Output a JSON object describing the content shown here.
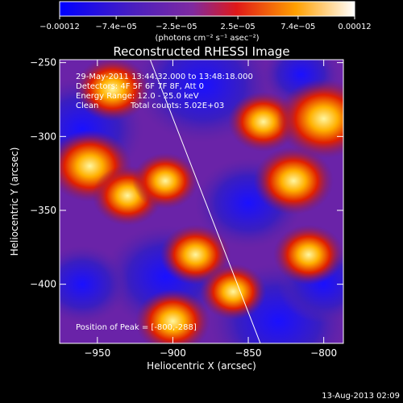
{
  "chart_data": {
    "type": "heatmap",
    "title": "Reconstructed RHESSI Image",
    "xlabel": "Heliocentric X (arcsec)",
    "ylabel": "Heliocentric Y (arcsec)",
    "xlim": [
      -975,
      -787
    ],
    "ylim": [
      -440,
      -248
    ],
    "xticks": [
      -950,
      -900,
      -850,
      -800
    ],
    "yticks": [
      -250,
      -300,
      -350,
      -400
    ],
    "xtick_labels": [
      "−950",
      "−900",
      "−850",
      "−800"
    ],
    "ytick_labels": [
      "−250",
      "−300",
      "−350",
      "−400"
    ],
    "colorbar": {
      "range": [
        -0.00012,
        0.00012
      ],
      "ticks": [
        -0.00012,
        -7.4e-05,
        -2.5e-05,
        2.5e-05,
        7.4e-05,
        0.00012
      ],
      "tick_labels": [
        "−0.00012",
        "−7.4e−05",
        "−2.5e−05",
        "2.5e−05",
        "7.4e−05",
        "0.00012"
      ],
      "unit_label": "(photons cm⁻² s⁻¹ asec⁻²)",
      "colormap": "blue-purple-red-yellow-white"
    },
    "limb_line": {
      "points": [
        [
          -915,
          -248
        ],
        [
          -842,
          -440
        ]
      ]
    },
    "annotations": [
      "29-May-2011 13:44:32.000 to 13:48:18.000",
      "Detectors: 4F 5F 6F 7F 8F, Att 0",
      "Energy Range: 12.0 - 25.0 keV",
      "Clean",
      "Total counts: 5.02E+03",
      "Position of Peak = [-800,-288]"
    ],
    "bright_sources": [
      {
        "x": -940,
        "y": -268,
        "value": 8e-05
      },
      {
        "x": -955,
        "y": -320,
        "value": 0.0001
      },
      {
        "x": -930,
        "y": -340,
        "value": 7e-05
      },
      {
        "x": -905,
        "y": -330,
        "value": 6e-05
      },
      {
        "x": -885,
        "y": -380,
        "value": 7e-05
      },
      {
        "x": -820,
        "y": -330,
        "value": 9e-05
      },
      {
        "x": -840,
        "y": -290,
        "value": 7e-05
      },
      {
        "x": -800,
        "y": -288,
        "value": 0.00012
      },
      {
        "x": -900,
        "y": -425,
        "value": 8e-05
      },
      {
        "x": -860,
        "y": -405,
        "value": 6e-05
      },
      {
        "x": -810,
        "y": -380,
        "value": 7e-05
      }
    ],
    "footer_timestamp": "13-Aug-2013 02:09"
  }
}
